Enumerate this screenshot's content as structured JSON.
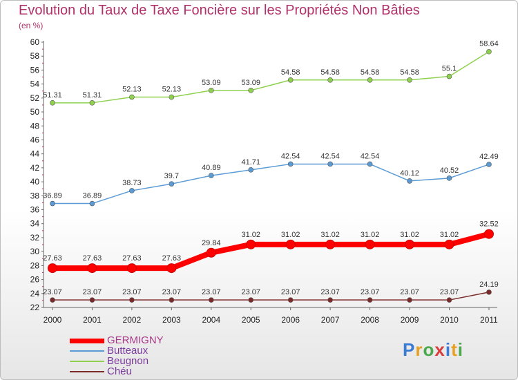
{
  "chart_data": {
    "type": "line",
    "title": "Evolution du Taux de Taxe Foncière sur les Propriétés Non Bâties",
    "subtitle": "(en %)",
    "categories": [
      "2000",
      "2001",
      "2002",
      "2003",
      "2004",
      "2005",
      "2006",
      "2007",
      "2008",
      "2009",
      "2010",
      "2011"
    ],
    "ylim": [
      22,
      60
    ],
    "yticks": [
      22,
      24,
      26,
      28,
      30,
      32,
      34,
      36,
      38,
      40,
      42,
      44,
      46,
      48,
      50,
      52,
      54,
      56,
      58,
      60
    ],
    "grid": false,
    "legend_position": "bottom-left",
    "series": [
      {
        "name": "GERMIGNY",
        "color": "#ff0000",
        "labels": [
          "27.63",
          "27.63",
          "27.63",
          "27.63",
          "29.84",
          "31.02",
          "31.02",
          "31.02",
          "31.02",
          "31.02",
          "31.02",
          "32.52"
        ],
        "values": [
          27.63,
          27.63,
          27.63,
          27.63,
          29.84,
          31.02,
          31.02,
          31.02,
          31.02,
          31.02,
          31.02,
          32.52
        ]
      },
      {
        "name": "Butteaux",
        "color": "#5b9bd5",
        "labels": [
          "36.89",
          "36.89",
          "38.73",
          "39.7",
          "40.89",
          "41.71",
          "42.54",
          "42.54",
          "42.54",
          "40.12",
          "40.52",
          "42.49"
        ],
        "values": [
          36.89,
          36.89,
          38.73,
          39.7,
          40.89,
          41.71,
          42.54,
          42.54,
          42.54,
          40.12,
          40.52,
          42.49
        ]
      },
      {
        "name": "Beugnon",
        "color": "#8fd14f",
        "labels": [
          "51.31",
          "51.31",
          "52.13",
          "52.13",
          "53.09",
          "53.09",
          "54.58",
          "54.58",
          "54.58",
          "54.58",
          "55.1",
          "58.64"
        ],
        "values": [
          51.31,
          51.31,
          52.13,
          52.13,
          53.09,
          53.09,
          54.58,
          54.58,
          54.58,
          54.58,
          55.1,
          58.64
        ]
      },
      {
        "name": "Chéu",
        "color": "#7b2a2a",
        "labels": [
          "23.07",
          "23.07",
          "23.07",
          "23.07",
          "23.07",
          "23.07",
          "23.07",
          "23.07",
          "23.07",
          "23.07",
          "23.07",
          "24.19"
        ],
        "values": [
          23.07,
          23.07,
          23.07,
          23.07,
          23.07,
          23.07,
          23.07,
          23.07,
          23.07,
          23.07,
          23.07,
          24.19
        ]
      }
    ]
  },
  "logo": {
    "letters": [
      {
        "ch": "P",
        "color": "#3a7bd5"
      },
      {
        "ch": "r",
        "color": "#e8a020"
      },
      {
        "ch": "o",
        "color": "#4aa84a"
      },
      {
        "ch": "x",
        "color": "#d93b3b"
      },
      {
        "ch": "i",
        "color": "#3a7bd5"
      },
      {
        "ch": "t",
        "color": "#e8a020"
      },
      {
        "ch": "i",
        "color": "#4aa84a"
      }
    ]
  }
}
